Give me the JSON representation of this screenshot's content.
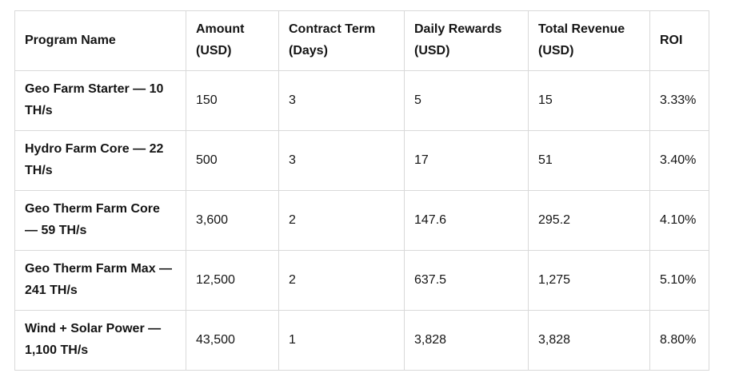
{
  "chart_data": {
    "type": "table",
    "columns": [
      "Program Name",
      "Amount (USD)",
      "Contract Term (Days)",
      "Daily Rewards (USD)",
      "Total Revenue (USD)",
      "ROI"
    ],
    "rows": [
      [
        "Geo Farm Starter — 10 TH/s",
        "150",
        "3",
        "5",
        "15",
        "3.33%"
      ],
      [
        "Hydro Farm Core — 22 TH/s",
        "500",
        "3",
        "17",
        "51",
        "3.40%"
      ],
      [
        "Geo Therm Farm Core — 59 TH/s",
        "3,600",
        "2",
        "147.6",
        "295.2",
        "4.10%"
      ],
      [
        "Geo Therm Farm Max — 241 TH/s",
        "12,500",
        "2",
        "637.5",
        "1,275",
        "5.10%"
      ],
      [
        "Wind + Solar Power — 1,100 TH/s",
        "43,500",
        "1",
        "3,828",
        "3,828",
        "8.80%"
      ]
    ],
    "numeric_rows": [
      {
        "amount_usd": 150,
        "contract_term_days": 3,
        "daily_rewards_usd": 5,
        "total_revenue_usd": 15,
        "roi_pct": 3.33
      },
      {
        "amount_usd": 500,
        "contract_term_days": 3,
        "daily_rewards_usd": 17,
        "total_revenue_usd": 51,
        "roi_pct": 3.4
      },
      {
        "amount_usd": 3600,
        "contract_term_days": 2,
        "daily_rewards_usd": 147.6,
        "total_revenue_usd": 295.2,
        "roi_pct": 4.1
      },
      {
        "amount_usd": 12500,
        "contract_term_days": 2,
        "daily_rewards_usd": 637.5,
        "total_revenue_usd": 1275,
        "roi_pct": 5.1
      },
      {
        "amount_usd": 43500,
        "contract_term_days": 1,
        "daily_rewards_usd": 3828,
        "total_revenue_usd": 3828,
        "roi_pct": 8.8
      }
    ]
  },
  "colors": {
    "border": "#d9d9d9",
    "text": "#151515",
    "background": "#ffffff"
  }
}
